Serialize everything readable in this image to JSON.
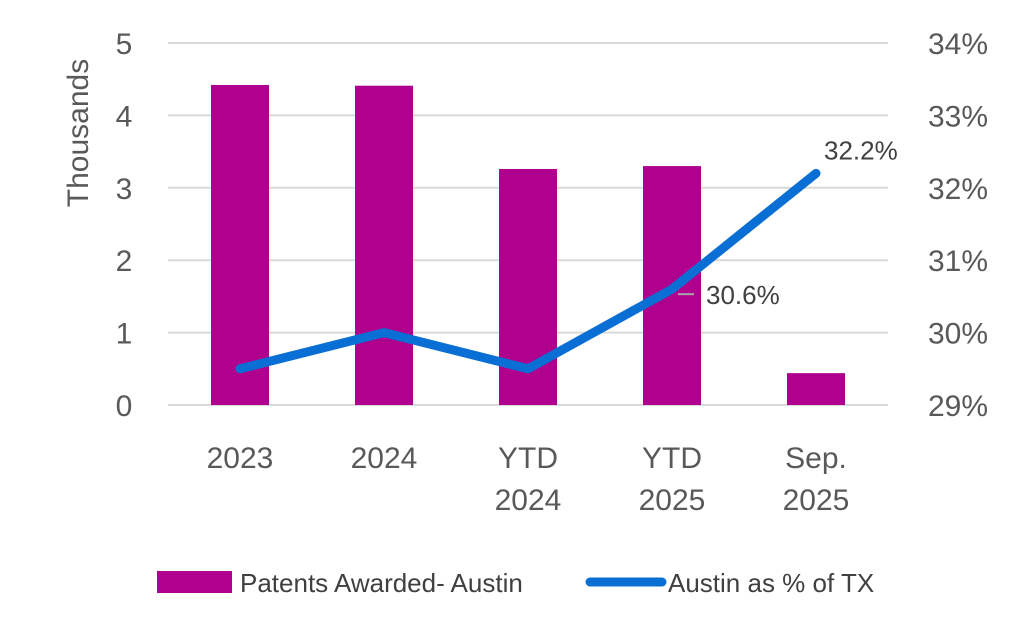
{
  "chart_data": {
    "type": "bar",
    "categories": [
      [
        "2023"
      ],
      [
        "2024"
      ],
      [
        "YTD",
        "2024"
      ],
      [
        "YTD",
        "2025"
      ],
      [
        "Sep.",
        "2025"
      ]
    ],
    "series": [
      {
        "name": "Patents Awarded- Austin",
        "type": "bar",
        "axis": "left",
        "color": "#b0008e",
        "values": [
          4.42,
          4.41,
          3.26,
          3.3,
          0.44
        ]
      },
      {
        "name": "Austin as % of TX",
        "type": "line",
        "axis": "right",
        "color": "#0a6fd4",
        "values": [
          29.5,
          30.0,
          29.5,
          30.6,
          32.2
        ],
        "data_labels": [
          null,
          null,
          null,
          "30.6%",
          "32.2%"
        ]
      }
    ],
    "ylabel": "Thousands",
    "ylim": [
      0,
      5
    ],
    "yticks": [
      "0",
      "1",
      "2",
      "3",
      "4",
      "5"
    ],
    "y2lim": [
      29,
      34
    ],
    "y2ticks": [
      "29%",
      "30%",
      "31%",
      "32%",
      "33%",
      "34%"
    ],
    "grid": true,
    "legend_position": "bottom"
  }
}
